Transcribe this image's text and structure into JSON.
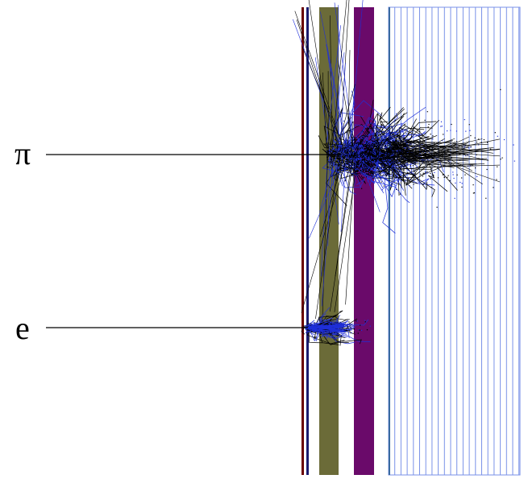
{
  "diagram": {
    "particles": [
      {
        "id": "pion",
        "label": "π",
        "shower": "hadronic"
      },
      {
        "id": "electron",
        "label": "e",
        "shower": "electromagnetic"
      }
    ],
    "colors": {
      "background": "#ffffff",
      "beam_line": "#000000",
      "layer_dark_red": "#6a0000",
      "layer_navy": "#1a1a6e",
      "layer_olive": "#6b6b38",
      "layer_purple": "#6a0a6a",
      "calorimeter_frame": "#3a6aa0",
      "calorimeter_plates": "#7a92e8",
      "track_black": "#000000",
      "track_blue": "#1f2fd8"
    }
  }
}
